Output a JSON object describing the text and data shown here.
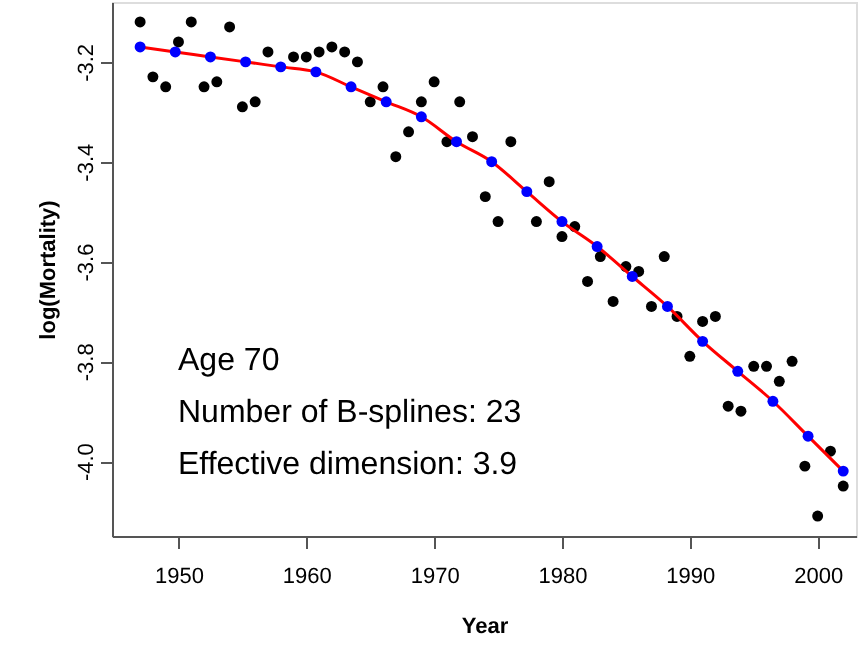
{
  "chart_data": {
    "type": "scatter",
    "xlabel": "Year",
    "ylabel": "log(Mortality)",
    "xlim": [
      1944.8,
      2003
    ],
    "ylim": [
      -4.15,
      -3.08
    ],
    "xticks": [
      1950,
      1960,
      1970,
      1980,
      1990,
      2000
    ],
    "yticks": [
      {
        "value": -4.0,
        "label": "-4.0"
      },
      {
        "value": -3.8,
        "label": "-3.8"
      },
      {
        "value": -3.6,
        "label": "-3.6"
      },
      {
        "value": -3.4,
        "label": "-3.4"
      },
      {
        "value": -3.2,
        "label": "-3.2"
      }
    ],
    "grid": false,
    "series": [
      {
        "marker": "circle",
        "color": "#000000",
        "x": [
          1947,
          1948,
          1949,
          1950,
          1951,
          1952,
          1953,
          1954,
          1955,
          1956,
          1957,
          1958,
          1959,
          1960,
          1961,
          1962,
          1963,
          1964,
          1965,
          1966,
          1967,
          1968,
          1969,
          1970,
          1971,
          1972,
          1973,
          1974,
          1975,
          1976,
          1977,
          1978,
          1979,
          1980,
          1981,
          1982,
          1983,
          1984,
          1985,
          1986,
          1987,
          1988,
          1989,
          1990,
          1991,
          1992,
          1993,
          1994,
          1995,
          1996,
          1997,
          1998,
          1999,
          2000,
          2001,
          2002
        ],
        "values": [
          -3.12,
          -3.23,
          -3.25,
          -3.16,
          -3.12,
          -3.25,
          -3.24,
          -3.13,
          -3.29,
          -3.28,
          -3.18,
          null,
          -3.19,
          -3.19,
          -3.18,
          -3.17,
          -3.18,
          -3.2,
          -3.28,
          -3.25,
          -3.39,
          -3.34,
          -3.28,
          -3.24,
          -3.36,
          -3.28,
          -3.35,
          -3.47,
          -3.52,
          -3.36,
          null,
          -3.52,
          -3.44,
          -3.55,
          -3.53,
          -3.64,
          -3.59,
          -3.68,
          -3.61,
          -3.62,
          -3.69,
          -3.59,
          -3.71,
          -3.79,
          -3.72,
          -3.71,
          -3.89,
          -3.9,
          -3.81,
          -3.81,
          -3.84,
          -3.8,
          -4.01,
          -4.11,
          -3.98,
          -4.05
        ]
      },
      {
        "type": "line",
        "marker": "none",
        "color": "#ff0000",
        "x": [
          1947,
          1949.75,
          1952.5,
          1955.25,
          1958,
          1960.75,
          1963.5,
          1966.25,
          1969,
          1971.75,
          1974.5,
          1977.25,
          1980,
          1982.75,
          1985.5,
          1988.25,
          1991,
          1993.75,
          1996.5,
          1999.25,
          2002
        ],
        "values": [
          -3.17,
          -3.18,
          -3.19,
          -3.2,
          -3.21,
          -3.22,
          -3.25,
          -3.28,
          -3.31,
          -3.36,
          -3.4,
          -3.46,
          -3.52,
          -3.57,
          -3.63,
          -3.69,
          -3.76,
          -3.82,
          -3.88,
          -3.95,
          -4.02
        ]
      },
      {
        "marker": "circle",
        "color": "#0000ff",
        "x": [
          1947,
          1949.75,
          1952.5,
          1955.25,
          1958,
          1960.75,
          1963.5,
          1966.25,
          1969,
          1971.75,
          1974.5,
          1977.25,
          1980,
          1982.75,
          1985.5,
          1988.25,
          1991,
          1993.75,
          1996.5,
          1999.25,
          2002
        ],
        "values": [
          -3.17,
          -3.18,
          -3.19,
          -3.2,
          -3.21,
          -3.22,
          -3.25,
          -3.28,
          -3.31,
          -3.36,
          -3.4,
          -3.46,
          -3.52,
          -3.57,
          -3.63,
          -3.69,
          -3.76,
          -3.82,
          -3.88,
          -3.95,
          -4.02
        ]
      }
    ],
    "annotations": [
      "Age 70",
      "Number of B-splines: 23",
      "Effective dimension: 3.9"
    ]
  }
}
